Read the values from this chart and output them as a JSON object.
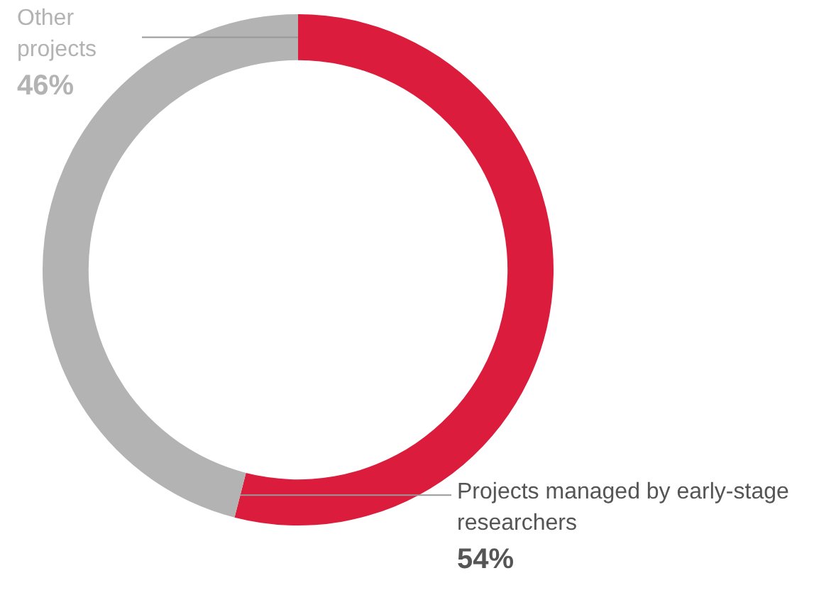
{
  "chart_data": {
    "type": "donut",
    "categories": [
      "Projects managed by early-stage researchers",
      "Other projects"
    ],
    "values": [
      54,
      46
    ],
    "colors": [
      "#dc1c3c",
      "#b3b3b3"
    ],
    "value_labels": [
      "54%",
      "46%"
    ]
  }
}
